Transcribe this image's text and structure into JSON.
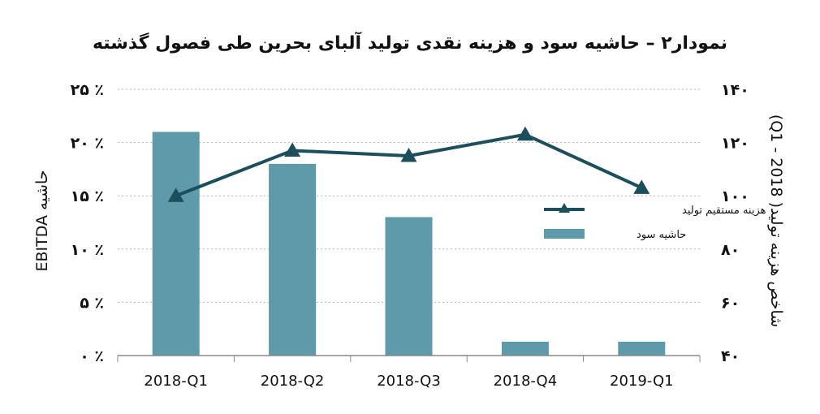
{
  "chart_data": {
    "type": "bar",
    "title": "نمودار۲ – حاشیه سود و هزینه نقدی تولید آلبای بحرین طی فصول گذشته",
    "categories": [
      "2018-Q1",
      "2018-Q2",
      "2018-Q3",
      "2018-Q4",
      "2019-Q1"
    ],
    "y_left_label": "EBITDA حاشیه",
    "y_right_label": "شاخص هزینه تولید( 2018 - Q1)",
    "y_left_ticks": [
      "۰ ٪",
      "۵ ٪",
      "۱۰ ٪",
      "۱۵ ٪",
      "۲۰ ٪",
      "۲۵ ٪"
    ],
    "y_right_ticks": [
      "۴۰",
      "۶۰",
      "۸۰",
      "۱۰۰",
      "۱۲۰",
      "۱۴۰"
    ],
    "ylim_left": [
      0,
      25
    ],
    "ylim_right": [
      40,
      140
    ],
    "series": [
      {
        "name": "حاشیه سود",
        "kind": "bar",
        "axis": "left",
        "color": "#5e9aaa",
        "values": [
          21,
          18,
          13,
          1.3,
          1.3
        ]
      },
      {
        "name": "هزینه مستقیم تولید",
        "kind": "line",
        "axis": "right",
        "color": "#1c4f5c",
        "marker": "triangle",
        "values": [
          100,
          117,
          115,
          123,
          103
        ]
      }
    ],
    "grid": "horizontal dotted",
    "legend_position": "right"
  }
}
